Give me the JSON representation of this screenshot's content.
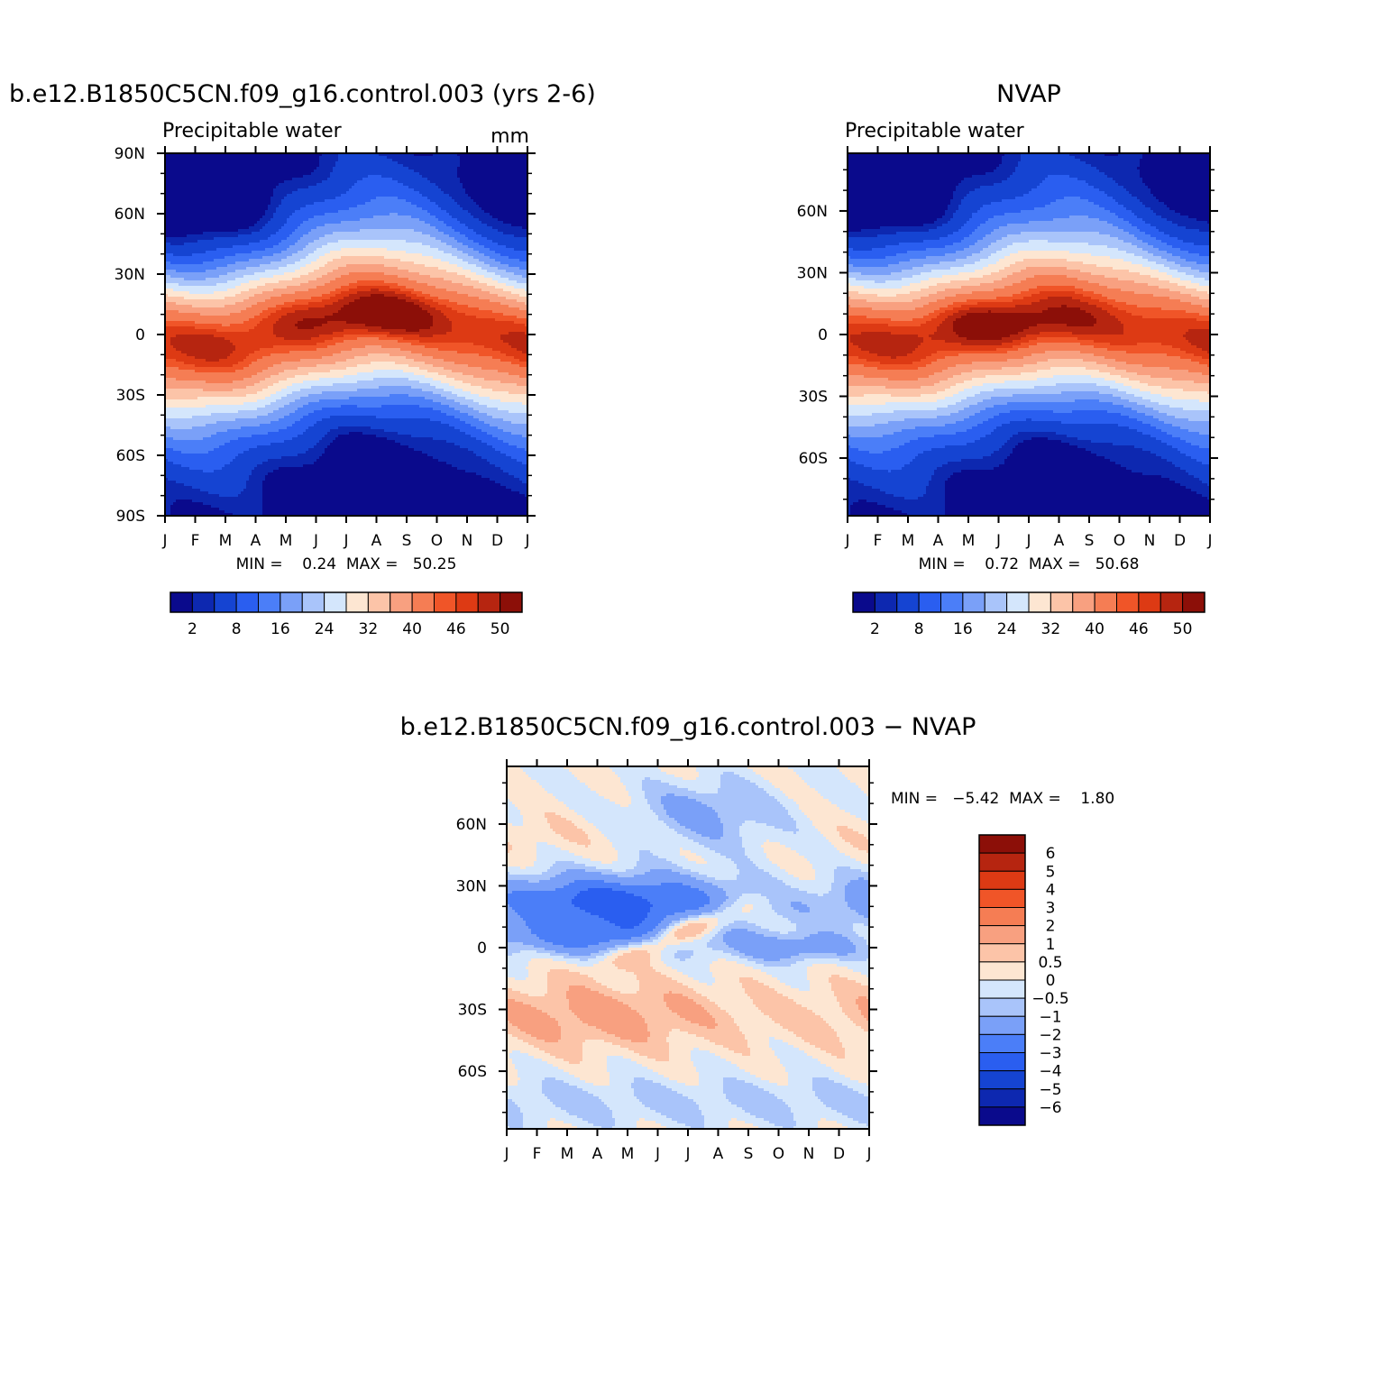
{
  "chart_data": [
    {
      "type": "heatmap",
      "id": "model",
      "title": "b.e12.B1850C5CN.f09_g16.control.003 (yrs 2-6)",
      "subtitle": "Precipitable water",
      "units": "mm",
      "x_labels": [
        "J",
        "F",
        "M",
        "A",
        "M",
        "J",
        "J",
        "A",
        "S",
        "O",
        "N",
        "D",
        "J"
      ],
      "y_ticks": [
        90,
        60,
        30,
        0,
        -30,
        -60,
        -90
      ],
      "y_labels": [
        "90N",
        "60N",
        "30N",
        "0",
        "30S",
        "60S",
        "90S"
      ],
      "ylim": [
        -90,
        90
      ],
      "stats_text": "MIN =    0.24  MAX =   50.25",
      "min": 0.24,
      "max": 50.25,
      "peak": {
        "month": 7.0,
        "lat": 10,
        "value": 50.25
      },
      "itcz_amplitude": 8
    },
    {
      "type": "heatmap",
      "id": "obs",
      "title": "NVAP",
      "subtitle": "Precipitable water",
      "units": "",
      "x_labels": [
        "J",
        "F",
        "M",
        "A",
        "M",
        "J",
        "J",
        "A",
        "S",
        "O",
        "N",
        "D",
        "J"
      ],
      "y_ticks": [
        60,
        30,
        0,
        -30,
        -60
      ],
      "y_labels": [
        "60N",
        "30N",
        "0",
        "30S",
        "60S"
      ],
      "ylim": [
        -88,
        88
      ],
      "stats_text": "MIN =    0.72  MAX =   50.68",
      "min": 0.72,
      "max": 50.68,
      "peak": {
        "month": 5.0,
        "lat": 5,
        "value": 50.68
      },
      "itcz_amplitude": 6
    },
    {
      "type": "heatmap",
      "id": "diff",
      "title": "b.e12.B1850C5CN.f09_g16.control.003 − NVAP",
      "x_labels": [
        "J",
        "F",
        "M",
        "A",
        "M",
        "J",
        "J",
        "A",
        "S",
        "O",
        "N",
        "D",
        "J"
      ],
      "y_ticks": [
        60,
        30,
        0,
        -30,
        -60
      ],
      "y_labels": [
        "60N",
        "30N",
        "0",
        "30S",
        "60S"
      ],
      "ylim": [
        -88,
        88
      ],
      "stats_text": "MIN =   −5.42  MAX =    1.80",
      "min": -5.42,
      "max": 1.8
    }
  ],
  "colorbar_main": {
    "colors": [
      "#0a0a8c",
      "#0d28b0",
      "#1544d2",
      "#2a5ef0",
      "#4b7ef8",
      "#7aa0f8",
      "#a9c4fa",
      "#d4e6fc",
      "#fde6d2",
      "#fcc4a8",
      "#f8a080",
      "#f57d54",
      "#f05528",
      "#dd3a14",
      "#b62510",
      "#8c0f08"
    ],
    "labels": [
      "2",
      "8",
      "16",
      "24",
      "32",
      "40",
      "46",
      "50"
    ]
  },
  "colorbar_diff": {
    "colors": [
      "#8c0f08",
      "#b62510",
      "#dd3a14",
      "#f05528",
      "#f57d54",
      "#f8a080",
      "#fcc4a8",
      "#fde6d2",
      "#d4e6fc",
      "#a9c4fa",
      "#7aa0f8",
      "#4b7ef8",
      "#2a5ef0",
      "#1544d2",
      "#0d28b0",
      "#0a0a8c"
    ],
    "labels": [
      "6",
      "5",
      "4",
      "3",
      "2",
      "1",
      "0.5",
      "0",
      "−0.5",
      "−1",
      "−2",
      "−3",
      "−4",
      "−5",
      "−6"
    ]
  }
}
